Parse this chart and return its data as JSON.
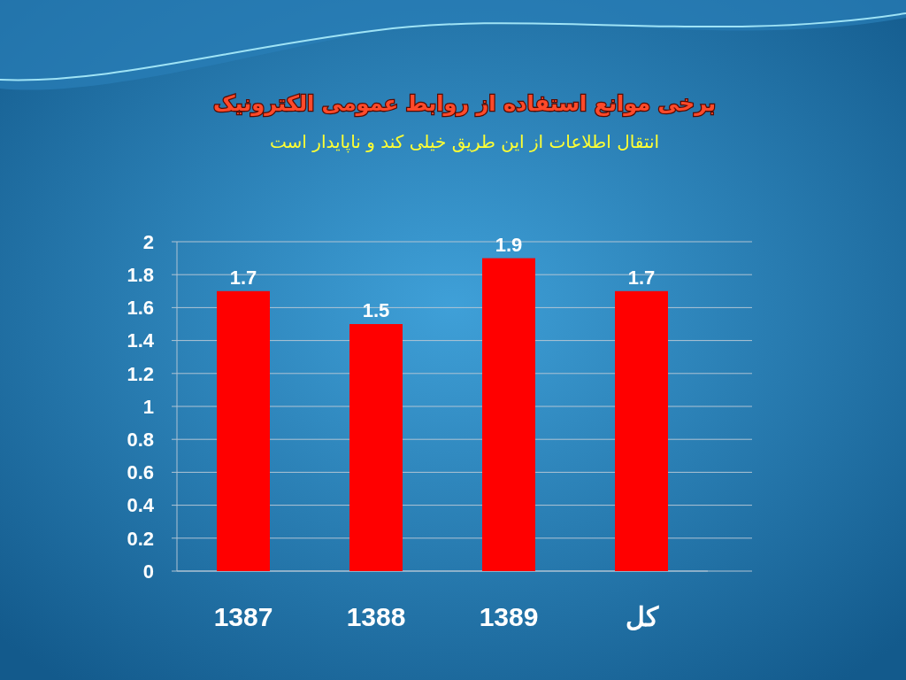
{
  "chart_data": {
    "type": "bar",
    "title": "برخی موانع استفاده از روابط عمومی الکترونیک",
    "subtitle": "انتقال اطلاعات از این طریق خیلی کند و ناپایدار است",
    "categories": [
      "1387",
      "1388",
      "1389",
      "کل"
    ],
    "values": [
      1.7,
      1.5,
      1.9,
      1.7
    ],
    "color": "#ff0000",
    "ylim": [
      0,
      2
    ],
    "yticks": [
      0,
      0.2,
      0.4,
      0.6,
      0.8,
      1,
      1.2,
      1.4,
      1.6,
      1.8,
      2
    ],
    "grid": "y",
    "data_labels": true
  }
}
